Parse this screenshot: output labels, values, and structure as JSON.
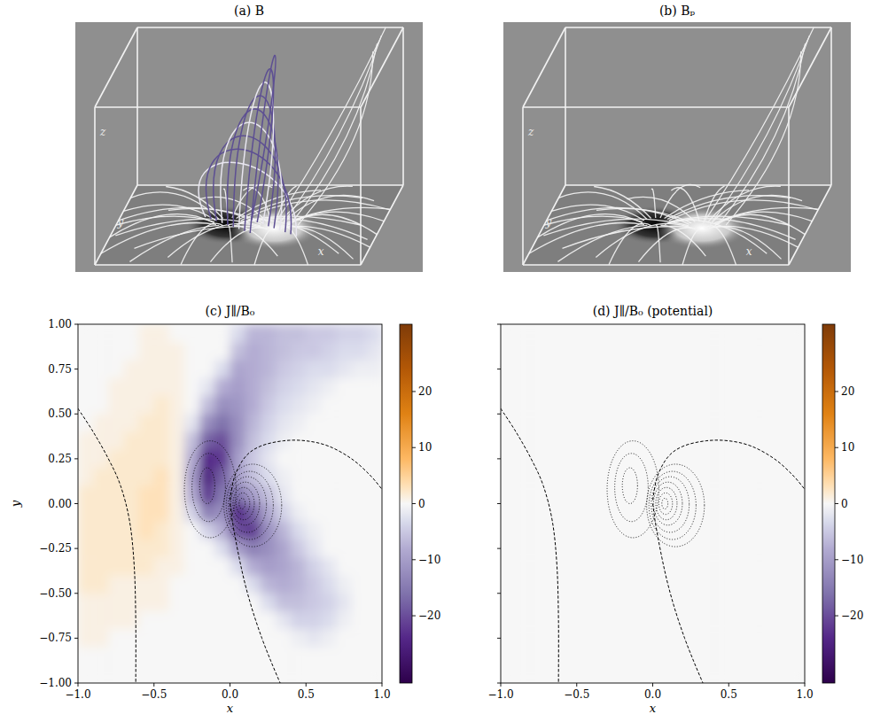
{
  "chart_data": [
    {
      "type": "3d_render",
      "title": "(a) B",
      "xlabel": "x",
      "ylabel": "y",
      "zlabel": "z",
      "tick_labels": false,
      "color": "#5d4f93"
    },
    {
      "type": "3d_render",
      "title": "(b) Bₚ",
      "xlabel": "x",
      "ylabel": "y",
      "zlabel": "z",
      "tick_labels": false
    },
    {
      "type": "heatmap",
      "title": "(c) J∥/B₀",
      "xlabel": "x",
      "ylabel": "y",
      "xlim": [
        -1,
        1
      ],
      "ylim": [
        -1,
        1
      ],
      "xticks": [
        {
          "value": -1,
          "label": "−1.0"
        },
        {
          "value": -0.5,
          "label": "−0.5"
        },
        {
          "value": 0,
          "label": "0.0"
        },
        {
          "value": 0.5,
          "label": "0.5"
        },
        {
          "value": 1,
          "label": "1.0"
        }
      ],
      "yticks": [
        {
          "value": -1,
          "label": "−1.00"
        },
        {
          "value": -0.75,
          "label": "−0.75"
        },
        {
          "value": -0.5,
          "label": "−0.50"
        },
        {
          "value": -0.25,
          "label": "−0.25"
        },
        {
          "value": 0,
          "label": "0.00"
        },
        {
          "value": 0.25,
          "label": "0.25"
        },
        {
          "value": 0.5,
          "label": "0.50"
        },
        {
          "value": 0.75,
          "label": "0.75"
        },
        {
          "value": 1,
          "label": "1.00"
        }
      ],
      "cells": [
        [
          0,
          0,
          0,
          0,
          1,
          1,
          0,
          0,
          0,
          0,
          -3,
          -7,
          -7,
          -6,
          -6,
          -5,
          -5,
          -4,
          -4,
          -3
        ],
        [
          0,
          0,
          0,
          0,
          1,
          1,
          1,
          0,
          0,
          0,
          -6,
          -8,
          -7,
          -6,
          -5,
          -5,
          -4,
          -3,
          -3,
          -2
        ],
        [
          0,
          0,
          0,
          1,
          1,
          1,
          1,
          0,
          0,
          -3,
          -9,
          -8,
          -7,
          -5,
          -4,
          -3,
          -3,
          -2,
          -1,
          -1
        ],
        [
          0,
          0,
          1,
          1,
          1,
          1,
          1,
          0,
          -2,
          -8,
          -10,
          -8,
          -6,
          -4,
          -3,
          -2,
          -1,
          0,
          0,
          0
        ],
        [
          0,
          0,
          1,
          1,
          1,
          2,
          1,
          0,
          -6,
          -12,
          -11,
          -8,
          -5,
          -3,
          -2,
          -1,
          0,
          0,
          0,
          0
        ],
        [
          0,
          1,
          1,
          1,
          2,
          2,
          1,
          -2,
          -12,
          -16,
          -12,
          -7,
          -4,
          -2,
          -1,
          0,
          0,
          0,
          0,
          0
        ],
        [
          1,
          1,
          1,
          2,
          2,
          2,
          1,
          -6,
          -18,
          -20,
          -12,
          -6,
          -3,
          -1,
          0,
          0,
          0,
          0,
          0,
          0
        ],
        [
          1,
          1,
          2,
          2,
          2,
          2,
          1,
          -8,
          -24,
          -22,
          -10,
          -5,
          -2,
          0,
          0,
          0,
          0,
          0,
          0,
          0
        ],
        [
          1,
          2,
          2,
          2,
          2,
          3,
          1,
          -10,
          -25,
          -18,
          -10,
          -6,
          -3,
          -1,
          0,
          0,
          0,
          0,
          0,
          0
        ],
        [
          2,
          2,
          2,
          2,
          3,
          3,
          1,
          -8,
          -22,
          -15,
          -16,
          -10,
          -6,
          -2,
          0,
          0,
          0,
          0,
          0,
          0
        ],
        [
          2,
          2,
          2,
          2,
          3,
          3,
          1,
          -4,
          -14,
          -12,
          -24,
          -18,
          -9,
          -4,
          -1,
          0,
          0,
          0,
          0,
          0
        ],
        [
          2,
          2,
          2,
          2,
          3,
          2,
          1,
          0,
          -4,
          -8,
          -20,
          -22,
          -12,
          -7,
          -3,
          -1,
          0,
          0,
          0,
          0
        ],
        [
          2,
          2,
          2,
          2,
          2,
          2,
          1,
          0,
          0,
          -3,
          -10,
          -14,
          -12,
          -9,
          -5,
          -2,
          0,
          0,
          0,
          0
        ],
        [
          2,
          2,
          2,
          2,
          2,
          1,
          1,
          0,
          0,
          0,
          -3,
          -8,
          -10,
          -9,
          -7,
          -4,
          -2,
          0,
          0,
          0
        ],
        [
          2,
          2,
          1,
          1,
          1,
          1,
          0,
          0,
          0,
          0,
          0,
          -3,
          -7,
          -8,
          -7,
          -5,
          -3,
          -1,
          0,
          0
        ],
        [
          1,
          1,
          1,
          1,
          1,
          1,
          0,
          0,
          0,
          0,
          0,
          0,
          -3,
          -6,
          -6,
          -5,
          -4,
          -2,
          0,
          0
        ],
        [
          1,
          1,
          1,
          1,
          0,
          0,
          0,
          0,
          0,
          0,
          0,
          0,
          0,
          -2,
          -4,
          -4,
          -3,
          -1,
          0,
          0
        ],
        [
          1,
          1,
          0,
          0,
          0,
          0,
          0,
          0,
          0,
          0,
          0,
          0,
          0,
          0,
          -1,
          -2,
          -1,
          0,
          0,
          0
        ],
        [
          0,
          0,
          0,
          0,
          0,
          0,
          0,
          0,
          0,
          0,
          0,
          0,
          0,
          0,
          0,
          0,
          0,
          0,
          0,
          0
        ],
        [
          0,
          0,
          0,
          0,
          0,
          0,
          0,
          0,
          0,
          0,
          0,
          0,
          0,
          0,
          0,
          0,
          0,
          0,
          0,
          0
        ]
      ],
      "colorbar": {
        "range": [
          -32,
          32
        ],
        "ticks": [
          {
            "value": -20,
            "label": "−20"
          },
          {
            "value": -10,
            "label": "−10"
          },
          0,
          10,
          20
        ]
      },
      "contours": [
        {
          "cx": -0.13,
          "cy": 0.08,
          "rx": 0.17,
          "ry": 0.27
        },
        {
          "cx": -0.14,
          "cy": 0.09,
          "rx": 0.11,
          "ry": 0.19
        },
        {
          "cx": -0.15,
          "cy": 0.1,
          "rx": 0.05,
          "ry": 0.1
        },
        {
          "cx": 0.15,
          "cy": -0.01,
          "rx": 0.19,
          "ry": 0.23
        },
        {
          "cx": 0.13,
          "cy": -0.01,
          "rx": 0.155,
          "ry": 0.19
        },
        {
          "cx": 0.115,
          "cy": -0.005,
          "rx": 0.125,
          "ry": 0.155
        },
        {
          "cx": 0.1,
          "cy": 0,
          "rx": 0.095,
          "ry": 0.12
        },
        {
          "cx": 0.09,
          "cy": 0,
          "rx": 0.07,
          "ry": 0.09
        },
        {
          "cx": 0.085,
          "cy": 0,
          "rx": 0.045,
          "ry": 0.06
        },
        {
          "cx": 0.08,
          "cy": 0,
          "rx": 0.02,
          "ry": 0.03
        }
      ],
      "lines": [
        {
          "x": [
            -1,
            -0.9,
            -0.8,
            -0.72,
            -0.66,
            -0.63,
            -0.62,
            -0.62
          ],
          "y": [
            0.53,
            0.4,
            0.25,
            0.1,
            -0.1,
            -0.35,
            -0.65,
            -1
          ],
          "line_style": "dashed"
        },
        {
          "x": [
            0,
            0.02,
            0.06,
            0.1,
            0.15,
            0.21,
            0.27,
            0.33
          ],
          "y": [
            0,
            -0.12,
            -0.3,
            -0.45,
            -0.6,
            -0.75,
            -0.88,
            -1
          ],
          "line_style": "dashed"
        },
        {
          "x": [
            0,
            0.03,
            0.1,
            0.2,
            0.35,
            0.5,
            0.65,
            0.8,
            0.92,
            1
          ],
          "y": [
            0.02,
            0.15,
            0.26,
            0.32,
            0.35,
            0.35,
            0.32,
            0.25,
            0.16,
            0.08
          ],
          "line_style": "dashed"
        }
      ]
    },
    {
      "type": "heatmap",
      "title": "(d) J∥/B₀ (potential)",
      "xlabel": "x",
      "tick_labels": "x",
      "xlim": [
        -1,
        1
      ],
      "ylim": [
        -1,
        1
      ],
      "xticks": [
        {
          "value": -1,
          "label": "−1.0"
        },
        {
          "value": -0.5,
          "label": "−0.5"
        },
        {
          "value": 0,
          "label": "0.0"
        },
        {
          "value": 0.5,
          "label": "0.5"
        },
        {
          "value": 1,
          "label": "1.0"
        }
      ],
      "yticks": [
        -1,
        -0.75,
        -0.5,
        -0.25,
        0,
        0.25,
        0.5,
        0.75,
        1
      ],
      "cells": [
        [
          0,
          0,
          0,
          0,
          0,
          0,
          0,
          0,
          0,
          0,
          0,
          0,
          0,
          0,
          0,
          0,
          0,
          0,
          0,
          0
        ],
        [
          0,
          0,
          0,
          0,
          0,
          0,
          0,
          0,
          0,
          0,
          0,
          0,
          0,
          0,
          0,
          0,
          0,
          0,
          0,
          0
        ],
        [
          0,
          0,
          0,
          0,
          0,
          0,
          0,
          0,
          0,
          0,
          0,
          0,
          0,
          0,
          0,
          0,
          0,
          0,
          0,
          0
        ],
        [
          0,
          0,
          0,
          0,
          0,
          0,
          0,
          0,
          0,
          0,
          0,
          0,
          0,
          0,
          0,
          0,
          0,
          0,
          0,
          0
        ],
        [
          0,
          0,
          0,
          0,
          0,
          0,
          0,
          0,
          0,
          0,
          0,
          0,
          0,
          0,
          0,
          0,
          0,
          0,
          0,
          0
        ],
        [
          0,
          0,
          0,
          0,
          0,
          0,
          0,
          0,
          0,
          0,
          0,
          0,
          0,
          0,
          0,
          0,
          0,
          0,
          0,
          0
        ],
        [
          0,
          0,
          0,
          0,
          0,
          0,
          0,
          0,
          0,
          0,
          0,
          0,
          0,
          0,
          0,
          0,
          0,
          0,
          0,
          0
        ],
        [
          0,
          0,
          0,
          0,
          0,
          0,
          0,
          0,
          0,
          0,
          0,
          0,
          0,
          0,
          0,
          0,
          0,
          0,
          0,
          0
        ],
        [
          0,
          0,
          0,
          0,
          0,
          0,
          0,
          0,
          0,
          0,
          0,
          0,
          0,
          0,
          0,
          0,
          0,
          0,
          0,
          0
        ],
        [
          0,
          0,
          0,
          0,
          0,
          0,
          0,
          0,
          0,
          0,
          0,
          0,
          0,
          0,
          0,
          0,
          0,
          0,
          0,
          0
        ],
        [
          0,
          0,
          0,
          0,
          0,
          0,
          0,
          0,
          0,
          0,
          0,
          0,
          0,
          0,
          0,
          0,
          0,
          0,
          0,
          0
        ],
        [
          0,
          0,
          0,
          0,
          0,
          0,
          0,
          0,
          0,
          0,
          0,
          0,
          0,
          0,
          0,
          0,
          0,
          0,
          0,
          0
        ],
        [
          0,
          0,
          0,
          0,
          0,
          0,
          0,
          0,
          0,
          0,
          0,
          0,
          0,
          0,
          0,
          0,
          0,
          0,
          0,
          0
        ],
        [
          0,
          0,
          0,
          0,
          0,
          0,
          0,
          0,
          0,
          0,
          0,
          0,
          0,
          0,
          0,
          0,
          0,
          0,
          0,
          0
        ],
        [
          0,
          0,
          0,
          0,
          0,
          0,
          0,
          0,
          0,
          0,
          0,
          0,
          0,
          0,
          0,
          0,
          0,
          0,
          0,
          0
        ],
        [
          0,
          0,
          0,
          0,
          0,
          0,
          0,
          0,
          0,
          0,
          0,
          0,
          0,
          0,
          0,
          0,
          0,
          0,
          0,
          0
        ],
        [
          0,
          0,
          0,
          0,
          0,
          0,
          0,
          0,
          0,
          0,
          0,
          0,
          0,
          0,
          0,
          0,
          0,
          0,
          0,
          0
        ],
        [
          0,
          0,
          0,
          0,
          0,
          0,
          0,
          0,
          0,
          0,
          0,
          0,
          0,
          0,
          0,
          0,
          0,
          0,
          0,
          0
        ],
        [
          0,
          0,
          0,
          0,
          0,
          0,
          0,
          0,
          0,
          0,
          0,
          0,
          0,
          0,
          0,
          0,
          0,
          0,
          0,
          0
        ],
        [
          0,
          0,
          0,
          0,
          0,
          0,
          0,
          0,
          0,
          0,
          0,
          0,
          0,
          0,
          0,
          0,
          0,
          0,
          0,
          0
        ]
      ],
      "colorbar": {
        "range": [
          -32,
          32
        ],
        "ticks": [
          {
            "value": -20,
            "label": "−20"
          },
          {
            "value": -10,
            "label": "−10"
          },
          0,
          10,
          20
        ]
      },
      "contours": [
        {
          "cx": -0.13,
          "cy": 0.08,
          "rx": 0.17,
          "ry": 0.27
        },
        {
          "cx": -0.14,
          "cy": 0.09,
          "rx": 0.11,
          "ry": 0.19
        },
        {
          "cx": -0.15,
          "cy": 0.1,
          "rx": 0.05,
          "ry": 0.1
        },
        {
          "cx": 0.15,
          "cy": -0.01,
          "rx": 0.19,
          "ry": 0.23
        },
        {
          "cx": 0.13,
          "cy": -0.01,
          "rx": 0.155,
          "ry": 0.19
        },
        {
          "cx": 0.115,
          "cy": -0.005,
          "rx": 0.125,
          "ry": 0.155
        },
        {
          "cx": 0.1,
          "cy": 0,
          "rx": 0.095,
          "ry": 0.12
        },
        {
          "cx": 0.09,
          "cy": 0,
          "rx": 0.07,
          "ry": 0.09
        },
        {
          "cx": 0.085,
          "cy": 0,
          "rx": 0.045,
          "ry": 0.06
        },
        {
          "cx": 0.08,
          "cy": 0,
          "rx": 0.02,
          "ry": 0.03
        }
      ],
      "lines": [
        {
          "x": [
            -1,
            -0.9,
            -0.8,
            -0.72,
            -0.66,
            -0.63,
            -0.62,
            -0.62
          ],
          "y": [
            0.53,
            0.4,
            0.25,
            0.1,
            -0.1,
            -0.35,
            -0.65,
            -1
          ],
          "line_style": "dashed"
        },
        {
          "x": [
            0,
            0.02,
            0.06,
            0.1,
            0.15,
            0.21,
            0.27,
            0.33
          ],
          "y": [
            0,
            -0.12,
            -0.3,
            -0.45,
            -0.6,
            -0.75,
            -0.88,
            -1
          ],
          "line_style": "dashed"
        },
        {
          "x": [
            0,
            0.03,
            0.1,
            0.2,
            0.35,
            0.5,
            0.65,
            0.8,
            0.92,
            1
          ],
          "y": [
            0.02,
            0.15,
            0.26,
            0.32,
            0.35,
            0.35,
            0.32,
            0.25,
            0.16,
            0.08
          ],
          "line_style": "dashed"
        }
      ]
    }
  ]
}
